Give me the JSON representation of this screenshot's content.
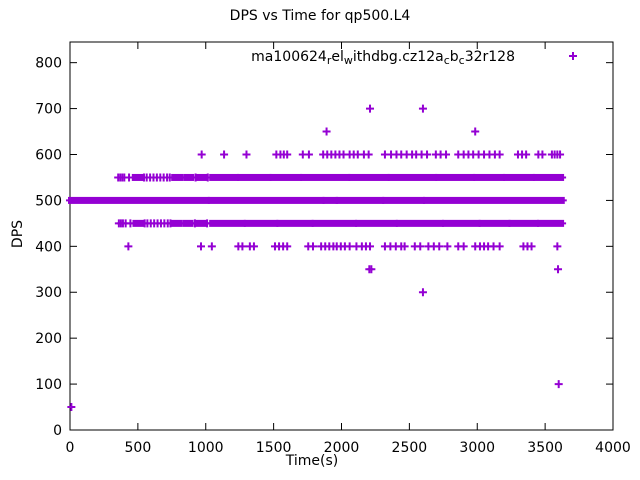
{
  "page": {
    "background": "#ffffff"
  },
  "chart_data": {
    "type": "scatter",
    "title": "DPS vs Time for qp500.L4",
    "xlabel": "Time(s)",
    "ylabel": "DPS",
    "xlim": [
      0,
      4000
    ],
    "ylim": [
      0,
      845
    ],
    "xticks": [
      0,
      500,
      1000,
      1500,
      2000,
      2500,
      3000,
      3500,
      4000
    ],
    "yticks": [
      0,
      100,
      200,
      300,
      400,
      500,
      600,
      700,
      800
    ],
    "grid": false,
    "legend_position": "top-right-inside",
    "marker": "plus",
    "marker_color": "#9400d3",
    "series_name_plain": "ma100624_rel_withdbg.cz12a_cb_c32r128",
    "legend_segments": [
      {
        "text": "ma100624"
      },
      {
        "text": "r",
        "sub": true
      },
      {
        "text": "el"
      },
      {
        "text": "w",
        "sub": true
      },
      {
        "text": "ithdbg.cz12a"
      },
      {
        "text": "c",
        "sub": true
      },
      {
        "text": "b"
      },
      {
        "text": "c",
        "sub": true
      },
      {
        "text": "32r128"
      }
    ],
    "points": [
      [
        10,
        50
      ],
      [
        3600,
        100
      ],
      [
        2600,
        300
      ],
      [
        2205,
        350
      ],
      [
        2220,
        350
      ],
      [
        3595,
        350
      ],
      [
        1890,
        650
      ],
      [
        2985,
        650
      ],
      [
        2210,
        700
      ],
      [
        2600,
        700
      ],
      [
        970,
        600
      ],
      [
        1135,
        600
      ],
      [
        1300,
        600
      ],
      [
        1520,
        600
      ],
      [
        1550,
        600
      ],
      [
        1575,
        600
      ],
      [
        1600,
        600
      ],
      [
        1715,
        600
      ],
      [
        1760,
        600
      ],
      [
        1865,
        600
      ],
      [
        1895,
        600
      ],
      [
        1925,
        600
      ],
      [
        1955,
        600
      ],
      [
        1985,
        600
      ],
      [
        2015,
        600
      ],
      [
        2060,
        600
      ],
      [
        2090,
        600
      ],
      [
        2120,
        600
      ],
      [
        2165,
        600
      ],
      [
        2200,
        600
      ],
      [
        2320,
        600
      ],
      [
        2365,
        600
      ],
      [
        2405,
        600
      ],
      [
        2440,
        600
      ],
      [
        2480,
        600
      ],
      [
        2520,
        600
      ],
      [
        2550,
        600
      ],
      [
        2590,
        600
      ],
      [
        2630,
        600
      ],
      [
        2695,
        600
      ],
      [
        2730,
        600
      ],
      [
        2770,
        600
      ],
      [
        2860,
        600
      ],
      [
        2900,
        600
      ],
      [
        2935,
        600
      ],
      [
        2970,
        600
      ],
      [
        3010,
        600
      ],
      [
        3050,
        600
      ],
      [
        3090,
        600
      ],
      [
        3130,
        600
      ],
      [
        3165,
        600
      ],
      [
        3300,
        600
      ],
      [
        3330,
        600
      ],
      [
        3360,
        600
      ],
      [
        3450,
        600
      ],
      [
        3480,
        600
      ],
      [
        3550,
        600
      ],
      [
        3570,
        600
      ],
      [
        3590,
        600
      ],
      [
        3610,
        600
      ],
      [
        430,
        400
      ],
      [
        965,
        400
      ],
      [
        1045,
        400
      ],
      [
        1240,
        400
      ],
      [
        1270,
        400
      ],
      [
        1325,
        400
      ],
      [
        1355,
        400
      ],
      [
        1510,
        400
      ],
      [
        1540,
        400
      ],
      [
        1570,
        400
      ],
      [
        1600,
        400
      ],
      [
        1755,
        400
      ],
      [
        1790,
        400
      ],
      [
        1850,
        400
      ],
      [
        1880,
        400
      ],
      [
        1910,
        400
      ],
      [
        1940,
        400
      ],
      [
        1965,
        400
      ],
      [
        1995,
        400
      ],
      [
        2025,
        400
      ],
      [
        2060,
        400
      ],
      [
        2110,
        400
      ],
      [
        2150,
        400
      ],
      [
        2180,
        400
      ],
      [
        2210,
        400
      ],
      [
        2320,
        400
      ],
      [
        2360,
        400
      ],
      [
        2400,
        400
      ],
      [
        2440,
        400
      ],
      [
        2465,
        400
      ],
      [
        2540,
        400
      ],
      [
        2580,
        400
      ],
      [
        2640,
        400
      ],
      [
        2680,
        400
      ],
      [
        2720,
        400
      ],
      [
        2780,
        400
      ],
      [
        2860,
        400
      ],
      [
        2900,
        400
      ],
      [
        2985,
        400
      ],
      [
        3020,
        400
      ],
      [
        3050,
        400
      ],
      [
        3080,
        400
      ],
      [
        3120,
        400
      ],
      [
        3165,
        400
      ],
      [
        3340,
        400
      ],
      [
        3370,
        400
      ],
      [
        3400,
        400
      ],
      [
        3590,
        400
      ]
    ],
    "bands": [
      {
        "dps": 550,
        "points": [
          355,
          370,
          385,
          400,
          435,
          545,
          565,
          590,
          615,
          640,
          665,
          690,
          715,
          735,
          925,
          1015
        ],
        "segments": [
          [
            470,
            530
          ],
          [
            760,
            820
          ],
          [
            850,
            900
          ],
          [
            940,
            1000
          ],
          [
            1040,
            1230
          ],
          [
            1245,
            1470
          ],
          [
            1485,
            1695
          ],
          [
            1710,
            2050
          ],
          [
            2065,
            2340
          ],
          [
            2355,
            2690
          ],
          [
            2705,
            2970
          ],
          [
            2985,
            3190
          ],
          [
            3205,
            3410
          ],
          [
            3425,
            3625
          ]
        ]
      },
      {
        "dps": 500,
        "points": [],
        "segments": [
          [
            0,
            1015
          ],
          [
            1030,
            1860
          ],
          [
            1875,
            1960
          ],
          [
            1972,
            2300
          ],
          [
            2315,
            2600
          ],
          [
            2615,
            3630
          ]
        ]
      },
      {
        "dps": 450,
        "points": [
          360,
          375,
          390,
          410,
          445,
          550,
          570,
          595,
          620,
          645,
          670,
          695,
          720,
          740,
          920,
          1010
        ],
        "segments": [
          [
            475,
            535
          ],
          [
            755,
            815
          ],
          [
            845,
            895
          ],
          [
            935,
            995
          ],
          [
            1040,
            1280
          ],
          [
            1295,
            1520
          ],
          [
            1535,
            1780
          ],
          [
            1795,
            2100
          ],
          [
            2115,
            2400
          ],
          [
            2415,
            2740
          ],
          [
            2755,
            3010
          ],
          [
            3025,
            3230
          ],
          [
            3245,
            3440
          ],
          [
            3455,
            3625
          ]
        ]
      }
    ]
  }
}
